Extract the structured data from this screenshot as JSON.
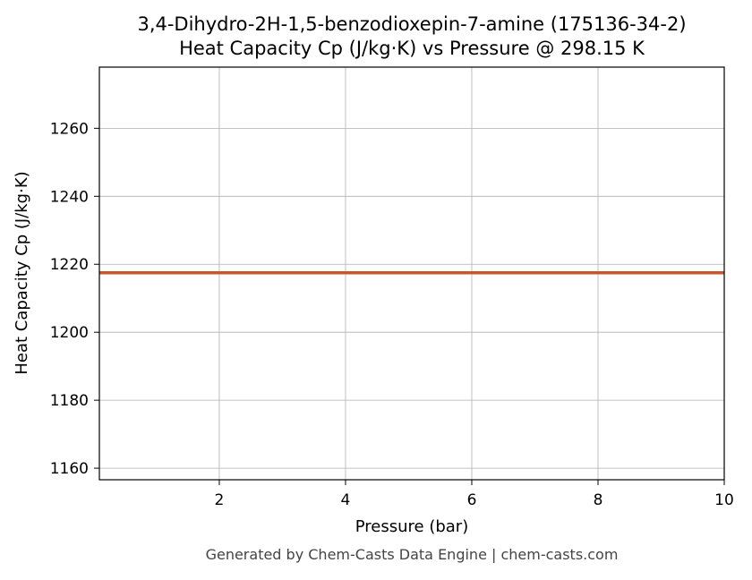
{
  "chart_data": {
    "type": "line",
    "title": "3,4-Dihydro-2H-1,5-benzodioxepin-7-amine (175136-34-2)",
    "subtitle": "Heat Capacity Cp (J/kg·K) vs Pressure @ 298.15 K",
    "xlabel": "Pressure (bar)",
    "ylabel": "Heat Capacity Cp (J/kg·K)",
    "x": [
      0.1,
      10
    ],
    "series": [
      {
        "color": "#c8562b",
        "values": [
          1217.5,
          1217.5
        ]
      }
    ],
    "xlim": [
      0.1,
      10
    ],
    "xticks": [
      2,
      4,
      6,
      8,
      10
    ],
    "ylim": [
      1156.6,
      1278
    ],
    "yticks": [
      1160,
      1180,
      1200,
      1220,
      1240,
      1260
    ],
    "grid": true,
    "footer": "Generated by Chem-Casts Data Engine | chem-casts.com"
  }
}
